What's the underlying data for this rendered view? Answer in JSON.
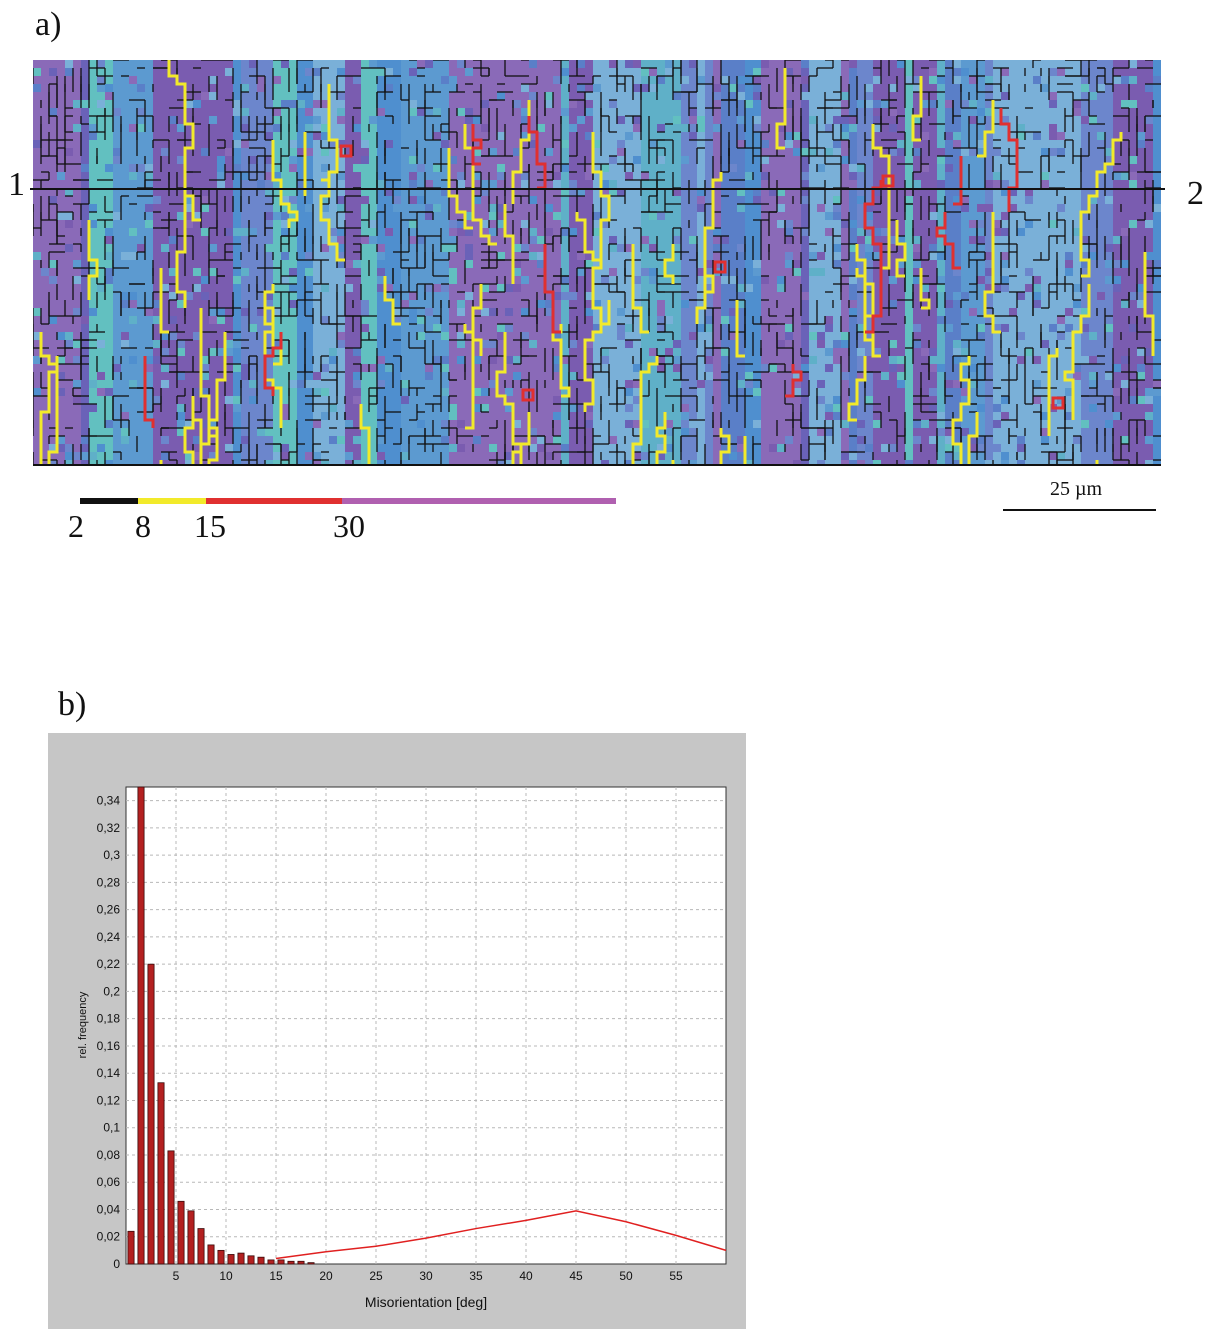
{
  "panel_a": {
    "label": "a)",
    "line_start": "1",
    "line_end": "2",
    "legend_ticks": [
      "2",
      "8",
      "15",
      "30"
    ],
    "legend_colors": [
      "#111111",
      "#f2ea2a",
      "#e03030",
      "#b060b0"
    ],
    "scale_bar_label": "25 µm"
  },
  "panel_b": {
    "label": "b)"
  },
  "chart_data": {
    "type": "bar",
    "xlabel": "Misorientation [deg]",
    "ylabel": "rel. frequency",
    "xlim": [
      0,
      60
    ],
    "ylim": [
      0,
      0.35
    ],
    "x_ticks": [
      "5",
      "10",
      "15",
      "20",
      "25",
      "30",
      "35",
      "40",
      "45",
      "50",
      "55"
    ],
    "y_ticks": [
      "0",
      "0,02",
      "0,04",
      "0,06",
      "0,08",
      "0,1",
      "0,12",
      "0,14",
      "0,16",
      "0,18",
      "0,2",
      "0,22",
      "0,24",
      "0,26",
      "0,28",
      "0,3",
      "0,32",
      "0,34"
    ],
    "grid": true,
    "bar_color": "#b32020",
    "bars": [
      {
        "x": 0.5,
        "value": 0.024
      },
      {
        "x": 1.5,
        "value": 0.35
      },
      {
        "x": 2.5,
        "value": 0.22
      },
      {
        "x": 3.5,
        "value": 0.133
      },
      {
        "x": 4.5,
        "value": 0.083
      },
      {
        "x": 5.5,
        "value": 0.046
      },
      {
        "x": 6.5,
        "value": 0.039
      },
      {
        "x": 7.5,
        "value": 0.026
      },
      {
        "x": 8.5,
        "value": 0.014
      },
      {
        "x": 9.5,
        "value": 0.01
      },
      {
        "x": 10.5,
        "value": 0.007
      },
      {
        "x": 11.5,
        "value": 0.008
      },
      {
        "x": 12.5,
        "value": 0.006
      },
      {
        "x": 13.5,
        "value": 0.005
      },
      {
        "x": 14.5,
        "value": 0.003
      },
      {
        "x": 15.5,
        "value": 0.003
      },
      {
        "x": 16.5,
        "value": 0.002
      },
      {
        "x": 17.5,
        "value": 0.002
      },
      {
        "x": 18.5,
        "value": 0.001
      }
    ],
    "line_series": {
      "color": "#e02020",
      "points": [
        [
          15,
          0.004
        ],
        [
          20,
          0.009
        ],
        [
          25,
          0.013
        ],
        [
          30,
          0.019
        ],
        [
          35,
          0.026
        ],
        [
          40,
          0.032
        ],
        [
          45,
          0.039
        ],
        [
          50,
          0.031
        ],
        [
          55,
          0.021
        ],
        [
          60,
          0.01
        ]
      ]
    }
  }
}
